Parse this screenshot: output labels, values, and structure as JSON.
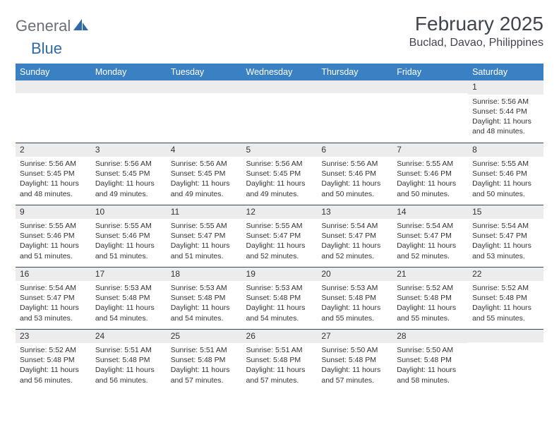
{
  "logo": {
    "text1": "General",
    "text2": "Blue"
  },
  "title": "February 2025",
  "location": "Buclad, Davao, Philippines",
  "colors": {
    "header_bg": "#3a81c4",
    "header_fg": "#ffffff",
    "daynum_bg": "#ececec",
    "rule": "#34495e",
    "logo_gray": "#6a6f78",
    "logo_blue": "#2f6aa8"
  },
  "day_headers": [
    "Sunday",
    "Monday",
    "Tuesday",
    "Wednesday",
    "Thursday",
    "Friday",
    "Saturday"
  ],
  "weeks": [
    [
      {
        "n": "",
        "sr": "",
        "ss": "",
        "dl": ""
      },
      {
        "n": "",
        "sr": "",
        "ss": "",
        "dl": ""
      },
      {
        "n": "",
        "sr": "",
        "ss": "",
        "dl": ""
      },
      {
        "n": "",
        "sr": "",
        "ss": "",
        "dl": ""
      },
      {
        "n": "",
        "sr": "",
        "ss": "",
        "dl": ""
      },
      {
        "n": "",
        "sr": "",
        "ss": "",
        "dl": ""
      },
      {
        "n": "1",
        "sr": "Sunrise: 5:56 AM",
        "ss": "Sunset: 5:44 PM",
        "dl": "Daylight: 11 hours and 48 minutes."
      }
    ],
    [
      {
        "n": "2",
        "sr": "Sunrise: 5:56 AM",
        "ss": "Sunset: 5:45 PM",
        "dl": "Daylight: 11 hours and 48 minutes."
      },
      {
        "n": "3",
        "sr": "Sunrise: 5:56 AM",
        "ss": "Sunset: 5:45 PM",
        "dl": "Daylight: 11 hours and 49 minutes."
      },
      {
        "n": "4",
        "sr": "Sunrise: 5:56 AM",
        "ss": "Sunset: 5:45 PM",
        "dl": "Daylight: 11 hours and 49 minutes."
      },
      {
        "n": "5",
        "sr": "Sunrise: 5:56 AM",
        "ss": "Sunset: 5:45 PM",
        "dl": "Daylight: 11 hours and 49 minutes."
      },
      {
        "n": "6",
        "sr": "Sunrise: 5:56 AM",
        "ss": "Sunset: 5:46 PM",
        "dl": "Daylight: 11 hours and 50 minutes."
      },
      {
        "n": "7",
        "sr": "Sunrise: 5:55 AM",
        "ss": "Sunset: 5:46 PM",
        "dl": "Daylight: 11 hours and 50 minutes."
      },
      {
        "n": "8",
        "sr": "Sunrise: 5:55 AM",
        "ss": "Sunset: 5:46 PM",
        "dl": "Daylight: 11 hours and 50 minutes."
      }
    ],
    [
      {
        "n": "9",
        "sr": "Sunrise: 5:55 AM",
        "ss": "Sunset: 5:46 PM",
        "dl": "Daylight: 11 hours and 51 minutes."
      },
      {
        "n": "10",
        "sr": "Sunrise: 5:55 AM",
        "ss": "Sunset: 5:46 PM",
        "dl": "Daylight: 11 hours and 51 minutes."
      },
      {
        "n": "11",
        "sr": "Sunrise: 5:55 AM",
        "ss": "Sunset: 5:47 PM",
        "dl": "Daylight: 11 hours and 51 minutes."
      },
      {
        "n": "12",
        "sr": "Sunrise: 5:55 AM",
        "ss": "Sunset: 5:47 PM",
        "dl": "Daylight: 11 hours and 52 minutes."
      },
      {
        "n": "13",
        "sr": "Sunrise: 5:54 AM",
        "ss": "Sunset: 5:47 PM",
        "dl": "Daylight: 11 hours and 52 minutes."
      },
      {
        "n": "14",
        "sr": "Sunrise: 5:54 AM",
        "ss": "Sunset: 5:47 PM",
        "dl": "Daylight: 11 hours and 52 minutes."
      },
      {
        "n": "15",
        "sr": "Sunrise: 5:54 AM",
        "ss": "Sunset: 5:47 PM",
        "dl": "Daylight: 11 hours and 53 minutes."
      }
    ],
    [
      {
        "n": "16",
        "sr": "Sunrise: 5:54 AM",
        "ss": "Sunset: 5:47 PM",
        "dl": "Daylight: 11 hours and 53 minutes."
      },
      {
        "n": "17",
        "sr": "Sunrise: 5:53 AM",
        "ss": "Sunset: 5:48 PM",
        "dl": "Daylight: 11 hours and 54 minutes."
      },
      {
        "n": "18",
        "sr": "Sunrise: 5:53 AM",
        "ss": "Sunset: 5:48 PM",
        "dl": "Daylight: 11 hours and 54 minutes."
      },
      {
        "n": "19",
        "sr": "Sunrise: 5:53 AM",
        "ss": "Sunset: 5:48 PM",
        "dl": "Daylight: 11 hours and 54 minutes."
      },
      {
        "n": "20",
        "sr": "Sunrise: 5:53 AM",
        "ss": "Sunset: 5:48 PM",
        "dl": "Daylight: 11 hours and 55 minutes."
      },
      {
        "n": "21",
        "sr": "Sunrise: 5:52 AM",
        "ss": "Sunset: 5:48 PM",
        "dl": "Daylight: 11 hours and 55 minutes."
      },
      {
        "n": "22",
        "sr": "Sunrise: 5:52 AM",
        "ss": "Sunset: 5:48 PM",
        "dl": "Daylight: 11 hours and 55 minutes."
      }
    ],
    [
      {
        "n": "23",
        "sr": "Sunrise: 5:52 AM",
        "ss": "Sunset: 5:48 PM",
        "dl": "Daylight: 11 hours and 56 minutes."
      },
      {
        "n": "24",
        "sr": "Sunrise: 5:51 AM",
        "ss": "Sunset: 5:48 PM",
        "dl": "Daylight: 11 hours and 56 minutes."
      },
      {
        "n": "25",
        "sr": "Sunrise: 5:51 AM",
        "ss": "Sunset: 5:48 PM",
        "dl": "Daylight: 11 hours and 57 minutes."
      },
      {
        "n": "26",
        "sr": "Sunrise: 5:51 AM",
        "ss": "Sunset: 5:48 PM",
        "dl": "Daylight: 11 hours and 57 minutes."
      },
      {
        "n": "27",
        "sr": "Sunrise: 5:50 AM",
        "ss": "Sunset: 5:48 PM",
        "dl": "Daylight: 11 hours and 57 minutes."
      },
      {
        "n": "28",
        "sr": "Sunrise: 5:50 AM",
        "ss": "Sunset: 5:48 PM",
        "dl": "Daylight: 11 hours and 58 minutes."
      },
      {
        "n": "",
        "sr": "",
        "ss": "",
        "dl": ""
      }
    ]
  ]
}
